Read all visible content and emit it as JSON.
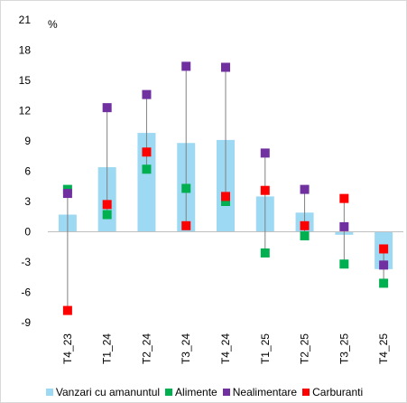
{
  "chart_data": {
    "type": "bar",
    "unit_label": "%",
    "categories": [
      "T4_23",
      "T1_24",
      "T2_24",
      "T3_24",
      "T4_24",
      "T1_25",
      "T2_25",
      "T3_25",
      "T4_25"
    ],
    "ylim": [
      -9,
      21
    ],
    "yticks": [
      21,
      18,
      15,
      12,
      9,
      6,
      3,
      0,
      -3,
      -6,
      -9
    ],
    "grid": false,
    "legend_position": "bottom",
    "series": [
      {
        "name": "Vanzari cu amanuntul",
        "kind": "bar",
        "color": "#9dd9f3",
        "values": [
          1.7,
          6.4,
          9.8,
          8.8,
          9.1,
          3.5,
          1.9,
          -0.3,
          -3.7
        ]
      },
      {
        "name": "Alimente",
        "kind": "marker",
        "color": "#00b050",
        "values": [
          4.2,
          1.7,
          6.2,
          4.3,
          3.0,
          -2.1,
          -0.4,
          -3.2,
          -5.1
        ]
      },
      {
        "name": "Nealimentare",
        "kind": "marker",
        "color": "#7030a0",
        "values": [
          3.8,
          12.3,
          13.6,
          16.4,
          16.3,
          7.8,
          4.2,
          0.5,
          -3.3
        ]
      },
      {
        "name": "Carburanti",
        "kind": "marker",
        "color": "#ff0000",
        "values": [
          -7.8,
          2.7,
          7.9,
          0.6,
          3.5,
          4.1,
          0.6,
          3.3,
          -1.7
        ]
      }
    ]
  }
}
